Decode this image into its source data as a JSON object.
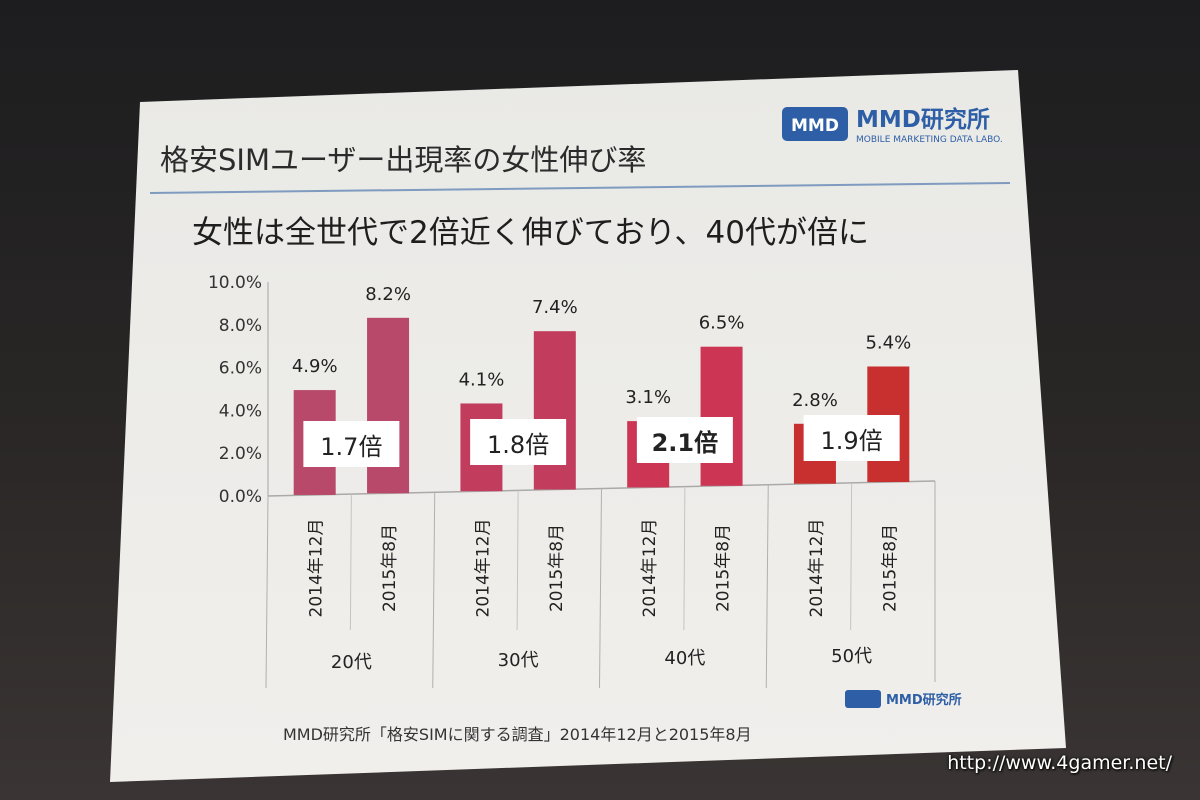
{
  "slide": {
    "title": "格安SIMユーザー出現率の女性伸び率",
    "subtitle": "女性は全世代で2倍近く伸びており、40代が倍に",
    "source": "MMD研究所「格安SIMに関する調査」2014年12月と2015年8月",
    "logo_text": "MMD研究所",
    "logo_sub": "MOBILE MARKETING DATA LABO.",
    "logo_small_text": "MMD研究所"
  },
  "watermark": "http://www.4gamer.net/",
  "colors": {
    "bar_20": "#b8496a",
    "bar_30": "#c23c5e",
    "bar_40": "#cc3553",
    "bar_50": "#c7302e",
    "title_rule": "#7f9bbf",
    "logo_blue": "#2e5fa6"
  },
  "chart_data": {
    "type": "bar",
    "ylim": [
      0,
      10
    ],
    "yticks": [
      "0.0%",
      "2.0%",
      "4.0%",
      "6.0%",
      "8.0%",
      "10.0%"
    ],
    "groups": [
      {
        "name": "20代",
        "bars": [
          {
            "label": "2014年12月",
            "value": 4.9,
            "value_label": "4.9%"
          },
          {
            "label": "2015年8月",
            "value": 8.2,
            "value_label": "8.2%"
          }
        ],
        "ratio": "1.7倍",
        "bold": false
      },
      {
        "name": "30代",
        "bars": [
          {
            "label": "2014年12月",
            "value": 4.1,
            "value_label": "4.1%"
          },
          {
            "label": "2015年8月",
            "value": 7.4,
            "value_label": "7.4%"
          }
        ],
        "ratio": "1.8倍",
        "bold": false
      },
      {
        "name": "40代",
        "bars": [
          {
            "label": "2014年12月",
            "value": 3.1,
            "value_label": "3.1%"
          },
          {
            "label": "2015年8月",
            "value": 6.5,
            "value_label": "6.5%"
          }
        ],
        "ratio": "2.1倍",
        "bold": true
      },
      {
        "name": "50代",
        "bars": [
          {
            "label": "2014年12月",
            "value": 2.8,
            "value_label": "2.8%"
          },
          {
            "label": "2015年8月",
            "value": 5.4,
            "value_label": "5.4%"
          }
        ],
        "ratio": "1.9倍",
        "bold": false
      }
    ]
  }
}
